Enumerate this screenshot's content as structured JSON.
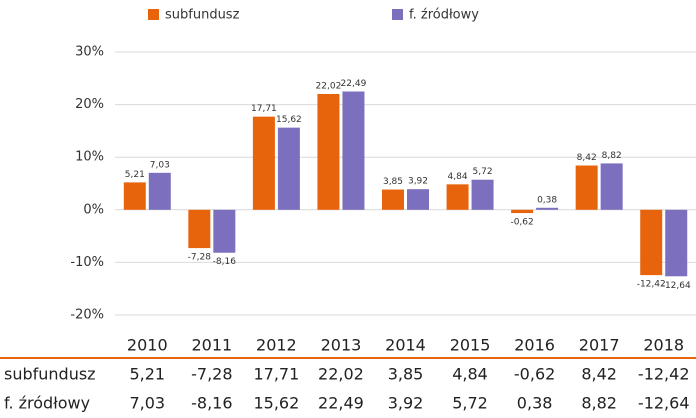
{
  "chart_data": {
    "type": "bar",
    "categories": [
      "2010",
      "2011",
      "2012",
      "2013",
      "2014",
      "2015",
      "2016",
      "2017",
      "2018"
    ],
    "series": [
      {
        "name": "subfundusz",
        "color": "#e8640c",
        "values": [
          5.21,
          -7.28,
          17.71,
          22.02,
          3.85,
          4.84,
          -0.62,
          8.42,
          -12.42
        ],
        "value_labels": [
          "5,21",
          "-7,28",
          "17,71",
          "22,02",
          "3,85",
          "4,84",
          "-0,62",
          "8,42",
          "-12,42"
        ]
      },
      {
        "name": "f. źródłowy",
        "color": "#7b6fbe",
        "values": [
          7.03,
          -8.16,
          15.62,
          22.49,
          3.92,
          5.72,
          0.38,
          8.82,
          -12.64
        ],
        "value_labels": [
          "7,03",
          "-8,16",
          "15,62",
          "22,49",
          "3,92",
          "5,72",
          "0,38",
          "8,82",
          "-12,64"
        ]
      }
    ],
    "ylim": [
      -20,
      30
    ],
    "yticks": [
      {
        "value": -20,
        "label": "-20%"
      },
      {
        "value": -10,
        "label": "-10%"
      },
      {
        "value": 0,
        "label": "0%"
      },
      {
        "value": 10,
        "label": "10%"
      },
      {
        "value": 20,
        "label": "20%"
      },
      {
        "value": 30,
        "label": "30%"
      }
    ],
    "grid": true,
    "legend": "top"
  }
}
